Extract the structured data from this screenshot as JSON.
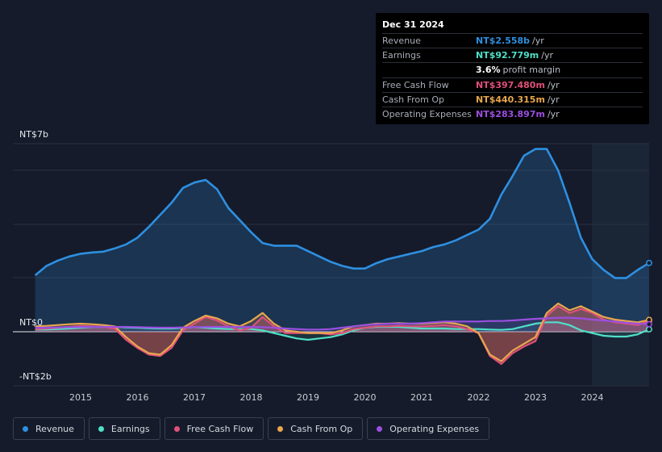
{
  "chart_data": {
    "type": "area",
    "title": "",
    "y_axis": {
      "top_label": "NT$7b",
      "zero_label": "NT$0",
      "bottom_label": "-NT$2b",
      "ylim": [
        -2,
        7
      ]
    },
    "x_ticks": [
      "2015",
      "2016",
      "2017",
      "2018",
      "2019",
      "2020",
      "2021",
      "2022",
      "2023",
      "2024"
    ],
    "x": [
      2014.2,
      2014.4,
      2014.6,
      2014.8,
      2015.0,
      2015.2,
      2015.4,
      2015.6,
      2015.8,
      2016.0,
      2016.2,
      2016.4,
      2016.6,
      2016.8,
      2017.0,
      2017.2,
      2017.4,
      2017.6,
      2017.8,
      2018.0,
      2018.2,
      2018.4,
      2018.6,
      2018.8,
      2019.0,
      2019.2,
      2019.4,
      2019.6,
      2019.8,
      2020.0,
      2020.2,
      2020.4,
      2020.6,
      2020.8,
      2021.0,
      2021.2,
      2021.4,
      2021.6,
      2021.8,
      2022.0,
      2022.2,
      2022.4,
      2022.6,
      2022.8,
      2023.0,
      2023.2,
      2023.4,
      2023.6,
      2023.8,
      2024.0,
      2024.2,
      2024.4,
      2024.6,
      2024.8,
      2025.0
    ],
    "series": [
      {
        "name": "Revenue",
        "color": "#2e8fe0",
        "values": [
          2.1,
          2.45,
          2.65,
          2.8,
          2.9,
          2.95,
          2.98,
          3.1,
          3.25,
          3.5,
          3.9,
          4.35,
          4.8,
          5.35,
          5.55,
          5.65,
          5.3,
          4.6,
          4.15,
          3.7,
          3.3,
          3.2,
          3.2,
          3.2,
          3.0,
          2.8,
          2.6,
          2.45,
          2.35,
          2.35,
          2.55,
          2.7,
          2.8,
          2.9,
          3.0,
          3.15,
          3.25,
          3.4,
          3.6,
          3.8,
          4.2,
          5.1,
          5.8,
          6.55,
          6.8,
          6.8,
          6.0,
          4.8,
          3.5,
          2.7,
          2.3,
          2.0,
          2.0,
          2.3,
          2.56
        ]
      },
      {
        "name": "Earnings",
        "color": "#4fe0c8",
        "values": [
          0.08,
          0.08,
          0.1,
          0.12,
          0.15,
          0.17,
          0.18,
          0.18,
          0.16,
          0.15,
          0.13,
          0.12,
          0.12,
          0.14,
          0.17,
          0.15,
          0.12,
          0.1,
          0.1,
          0.1,
          0.05,
          -0.05,
          -0.15,
          -0.25,
          -0.3,
          -0.25,
          -0.2,
          -0.1,
          0.05,
          0.15,
          0.18,
          0.18,
          0.18,
          0.15,
          0.12,
          0.12,
          0.12,
          0.1,
          0.1,
          0.1,
          0.08,
          0.07,
          0.1,
          0.2,
          0.3,
          0.35,
          0.35,
          0.25,
          0.05,
          -0.05,
          -0.15,
          -0.18,
          -0.18,
          -0.1,
          0.09
        ]
      },
      {
        "name": "Free Cash Flow",
        "color": "#e0507a",
        "values": [
          0.1,
          0.12,
          0.15,
          0.18,
          0.22,
          0.2,
          0.18,
          0.12,
          -0.3,
          -0.6,
          -0.85,
          -0.9,
          -0.6,
          0.05,
          0.3,
          0.55,
          0.42,
          0.2,
          0.05,
          0.15,
          0.55,
          0.2,
          -0.05,
          -0.05,
          -0.05,
          -0.05,
          -0.1,
          -0.05,
          0.1,
          0.15,
          0.2,
          0.2,
          0.22,
          0.2,
          0.2,
          0.22,
          0.25,
          0.2,
          0.1,
          -0.05,
          -0.9,
          -1.2,
          -0.8,
          -0.55,
          -0.35,
          0.6,
          0.95,
          0.7,
          0.85,
          0.7,
          0.45,
          0.35,
          0.3,
          0.25,
          0.4
        ]
      },
      {
        "name": "Cash From Op",
        "color": "#e8a64e",
        "values": [
          0.2,
          0.22,
          0.25,
          0.28,
          0.3,
          0.28,
          0.25,
          0.2,
          -0.2,
          -0.55,
          -0.8,
          -0.85,
          -0.5,
          0.15,
          0.4,
          0.6,
          0.5,
          0.3,
          0.2,
          0.4,
          0.7,
          0.3,
          0.05,
          0.0,
          -0.05,
          -0.05,
          -0.05,
          0.05,
          0.2,
          0.25,
          0.3,
          0.3,
          0.32,
          0.3,
          0.3,
          0.32,
          0.35,
          0.3,
          0.2,
          -0.05,
          -0.85,
          -1.1,
          -0.7,
          -0.45,
          -0.2,
          0.7,
          1.05,
          0.8,
          0.95,
          0.75,
          0.55,
          0.45,
          0.4,
          0.35,
          0.44
        ]
      },
      {
        "name": "Operating Expenses",
        "color": "#9b4fe0",
        "values": [
          0.15,
          0.15,
          0.16,
          0.17,
          0.18,
          0.18,
          0.18,
          0.18,
          0.18,
          0.17,
          0.16,
          0.15,
          0.15,
          0.16,
          0.17,
          0.18,
          0.18,
          0.18,
          0.18,
          0.18,
          0.17,
          0.15,
          0.12,
          0.1,
          0.08,
          0.08,
          0.1,
          0.15,
          0.2,
          0.25,
          0.28,
          0.3,
          0.3,
          0.3,
          0.32,
          0.35,
          0.38,
          0.38,
          0.38,
          0.38,
          0.4,
          0.4,
          0.42,
          0.45,
          0.48,
          0.5,
          0.52,
          0.52,
          0.5,
          0.45,
          0.42,
          0.38,
          0.33,
          0.3,
          0.28
        ]
      }
    ]
  },
  "tooltip": {
    "date": "Dec 31 2024",
    "rows": [
      {
        "label": "Revenue",
        "value": "NT$2.558b",
        "unit": "/yr",
        "color": "#2e8fe0"
      },
      {
        "label": "Earnings",
        "value": "NT$92.779m",
        "unit": "/yr",
        "color": "#4fe0c8"
      },
      {
        "label": "",
        "value": "3.6%",
        "unit": "profit margin",
        "color": "#ffffff"
      },
      {
        "label": "Free Cash Flow",
        "value": "NT$397.480m",
        "unit": "/yr",
        "color": "#e0507a"
      },
      {
        "label": "Cash From Op",
        "value": "NT$440.315m",
        "unit": "/yr",
        "color": "#e8a64e"
      },
      {
        "label": "Operating Expenses",
        "value": "NT$283.897m",
        "unit": "/yr",
        "color": "#9b4fe0"
      }
    ]
  },
  "legend": [
    {
      "label": "Revenue",
      "color": "#2e8fe0"
    },
    {
      "label": "Earnings",
      "color": "#4fe0c8"
    },
    {
      "label": "Free Cash Flow",
      "color": "#e0507a"
    },
    {
      "label": "Cash From Op",
      "color": "#e8a64e"
    },
    {
      "label": "Operating Expenses",
      "color": "#9b4fe0"
    }
  ]
}
